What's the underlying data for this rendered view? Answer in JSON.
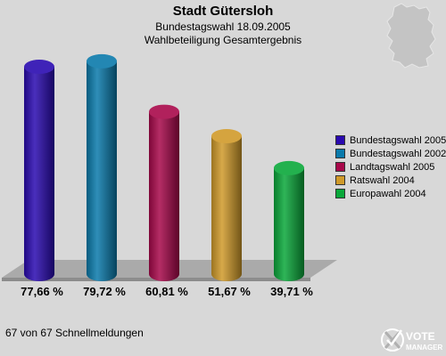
{
  "chart_data": {
    "type": "bar",
    "title": "Stadt Gütersloh",
    "subtitle_lines": [
      "Bundestagswahl 18.09.2005",
      "Wahlbeteiligung Gesamtergebnis"
    ],
    "ylim": [
      0,
      100
    ],
    "series": [
      {
        "name": "Bundestagswahl 2005",
        "value": 77.66,
        "label": "77,66 %",
        "color": "#2a0ab0"
      },
      {
        "name": "Bundestagswahl 2002",
        "value": 79.72,
        "label": "79,72 %",
        "color": "#0a7aab"
      },
      {
        "name": "Landtagswahl 2005",
        "value": 60.81,
        "label": "60,81 %",
        "color": "#a8084a"
      },
      {
        "name": "Ratswahl 2004",
        "value": 51.67,
        "label": "51,67 %",
        "color": "#d09a2a"
      },
      {
        "name": "Europawahl 2004",
        "value": 39.71,
        "label": "39,71 %",
        "color": "#0aa83a"
      }
    ],
    "legend_position": "right"
  },
  "footer": {
    "text": "67 von 67 Schnellmeldungen"
  },
  "logo": {
    "line1": "VOTE",
    "line2": "MANAGER"
  }
}
